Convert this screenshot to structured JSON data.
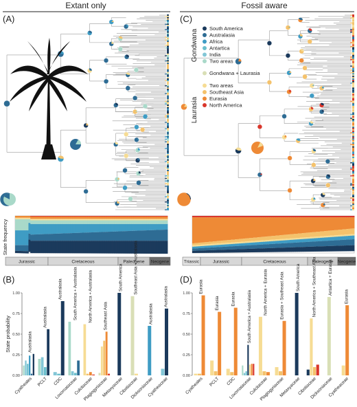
{
  "panel_titles": {
    "left": "Extant only",
    "right": "Fossil aware"
  },
  "panel_letters": {
    "A": "(A)",
    "B": "(B)",
    "C": "(C)",
    "D": "(D)"
  },
  "colors": {
    "south_america": "#1b3a5c",
    "australasia": "#2e6c94",
    "africa": "#3f9cc4",
    "antartica": "#6cbfcc",
    "india": "#82c6d6",
    "two_areas_gondwana": "#a9d9c9",
    "gondwana_laurasia": "#d9dfb6",
    "two_areas_laurasia": "#f6dc94",
    "southeast_asia": "#f4c26c",
    "eurasia": "#ee8a36",
    "north_america": "#d9362b"
  },
  "legend": {
    "gondwana_title": "Gondwana",
    "laurasia_title": "Laurasia",
    "gondwana_items": [
      {
        "label": "South America",
        "color": "#1b3a5c"
      },
      {
        "label": "Australasia",
        "color": "#2e6c94"
      },
      {
        "label": "Africa",
        "color": "#3f9cc4"
      },
      {
        "label": "Antartica",
        "color": "#6cbfcc"
      },
      {
        "label": "India",
        "color": "#82c6d6"
      },
      {
        "label": "Two areas",
        "color": "#a9d9c9"
      }
    ],
    "mixed_item": {
      "label": "Gondwana + Laurasia",
      "color": "#d9dfb6"
    },
    "laurasia_items": [
      {
        "label": "Two areas",
        "color": "#f6dc94"
      },
      {
        "label": "Southeast Asia",
        "color": "#f4c26c"
      },
      {
        "label": "Eurasia",
        "color": "#ee8a36"
      },
      {
        "label": "North America",
        "color": "#d9362b"
      }
    ]
  },
  "state_frequency_label": "State frequency",
  "timescale_left": [
    "Jurassic",
    "Cretaceous",
    "Paleogene",
    "Neogene"
  ],
  "timescale_right": [
    "Triassic",
    "Jurassic",
    "Cretaceous",
    "Paleogene",
    "Neogene"
  ],
  "y_axis_label": "State probability",
  "chart_data": [
    {
      "type": "bar",
      "panel": "B",
      "ylabel": "State probability",
      "ylim": [
        0,
        1
      ],
      "yticks": [
        "0.00",
        "0.25",
        "0.50",
        "0.75",
        "1.00"
      ],
      "categories": [
        "Cyatheales",
        "PCLT",
        "CDC",
        "Loxomataceae",
        "Culcitaceae",
        "Plagiogyriaceae",
        "Metaxyaceae",
        "Cibotiaceae",
        "Dicksoniaceae",
        "Cyatheaceae"
      ],
      "series_colors": [
        "#a9d9c9",
        "#82c6d6",
        "#6cbfcc",
        "#3f9cc4",
        "#2e6c94",
        "#1b3a5c",
        "#d9dfb6",
        "#f6dc94",
        "#f4c26c",
        "#ee8a36",
        "#d9362b"
      ],
      "bars": [
        [
          0.12,
          0.18,
          0.14,
          0.24,
          0.02,
          0.26,
          0.0,
          0.0,
          0.0,
          0.0,
          0.0
        ],
        [
          0.2,
          0.22,
          0.1,
          0.0,
          0.0,
          0.56,
          0.0,
          0.0,
          0.0,
          0.0,
          0.0
        ],
        [
          0.0,
          0.04,
          0.02,
          0.0,
          0.0,
          0.9,
          0.0,
          0.0,
          0.0,
          0.0,
          0.0
        ],
        [
          0.65,
          0.05,
          0.03,
          0.0,
          0.18,
          0.0,
          0.0,
          0.0,
          0.0,
          0.0,
          0.0
        ],
        [
          0.0,
          0.0,
          0.0,
          0.0,
          0.0,
          0.0,
          0.0,
          0.62,
          0.02,
          0.04,
          0.01
        ],
        [
          0.0,
          0.0,
          0.0,
          0.0,
          0.0,
          0.0,
          0.03,
          0.35,
          0.42,
          0.53,
          0.02
        ],
        [
          0.0,
          0.0,
          0.0,
          0.0,
          0.0,
          1.0,
          0.0,
          0.0,
          0.0,
          0.0,
          0.0
        ],
        [
          0.0,
          0.0,
          0.0,
          0.0,
          0.0,
          0.0,
          0.96,
          0.02,
          0.0,
          0.0,
          0.0
        ],
        [
          0.0,
          0.0,
          0.0,
          0.6,
          0.0,
          0.0,
          0.0,
          0.0,
          0.0,
          0.0,
          0.0
        ],
        [
          0.0,
          0.08,
          0.0,
          0.0,
          0.0,
          0.81,
          0.0,
          0.0,
          0.0,
          0.0,
          0.0
        ]
      ],
      "annotations": [
        "Australasia",
        "Australasia",
        "Australasia",
        "South America + Australasia",
        "North America + Australasia",
        "Southeast Asia",
        "South America",
        "Southeast Asia + Australasia",
        "Australasia",
        "Australasia"
      ]
    },
    {
      "type": "bar",
      "panel": "D",
      "ylabel": "State probability",
      "ylim": [
        0,
        1
      ],
      "yticks": [
        "0.00",
        "0.25",
        "0.50",
        "0.75",
        "1.00"
      ],
      "categories": [
        "Cyatheales",
        "PCLT",
        "CDC",
        "Loxomataceae",
        "Culcitaceae",
        "Plagiogyriaceae",
        "Metaxyaceae",
        "Cibotiaceae",
        "Dicksoniaceae",
        "Cyatheaceae"
      ],
      "series_colors": [
        "#a9d9c9",
        "#82c6d6",
        "#6cbfcc",
        "#3f9cc4",
        "#2e6c94",
        "#1b3a5c",
        "#d9dfb6",
        "#f6dc94",
        "#f4c26c",
        "#ee8a36",
        "#d9362b"
      ],
      "bars": [
        [
          0.0,
          0.0,
          0.0,
          0.0,
          0.0,
          0.0,
          0.0,
          0.02,
          0.02,
          0.97,
          0.0
        ],
        [
          0.0,
          0.0,
          0.0,
          0.0,
          0.0,
          0.0,
          0.0,
          0.18,
          0.05,
          0.77,
          0.0
        ],
        [
          0.0,
          0.0,
          0.0,
          0.0,
          0.0,
          0.0,
          0.0,
          0.08,
          0.04,
          0.82,
          0.0
        ],
        [
          0.12,
          0.03,
          0.05,
          0.0,
          0.0,
          0.37,
          0.0,
          0.13,
          0.0,
          0.14,
          0.14
        ],
        [
          0.0,
          0.0,
          0.0,
          0.0,
          0.0,
          0.0,
          0.0,
          0.71,
          0.05,
          0.04,
          0.0
        ],
        [
          0.0,
          0.0,
          0.0,
          0.0,
          0.0,
          0.0,
          0.0,
          0.1,
          0.05,
          0.66,
          0.0
        ],
        [
          0.0,
          0.0,
          0.0,
          0.0,
          0.0,
          1.0,
          0.0,
          0.0,
          0.0,
          0.0,
          0.0
        ],
        [
          0.0,
          0.0,
          0.0,
          0.0,
          0.0,
          0.07,
          0.0,
          0.69,
          0.1,
          0.0,
          0.13
        ],
        [
          0.0,
          0.0,
          0.0,
          0.0,
          0.0,
          0.0,
          0.95,
          0.0,
          0.0,
          0.0,
          0.0
        ],
        [
          0.0,
          0.0,
          0.0,
          0.0,
          0.0,
          0.0,
          0.0,
          0.12,
          0.0,
          0.85,
          0.0
        ]
      ],
      "annotations": [
        "Eurasia",
        "Eurasia",
        "Eurasia",
        "South America + Australasia",
        "North America + Eurasia",
        "Eurasia + Southeast Asia",
        "South America",
        "North America + Southeast Asia",
        "Antartica + Eurasia",
        "Eurasia"
      ]
    }
  ]
}
